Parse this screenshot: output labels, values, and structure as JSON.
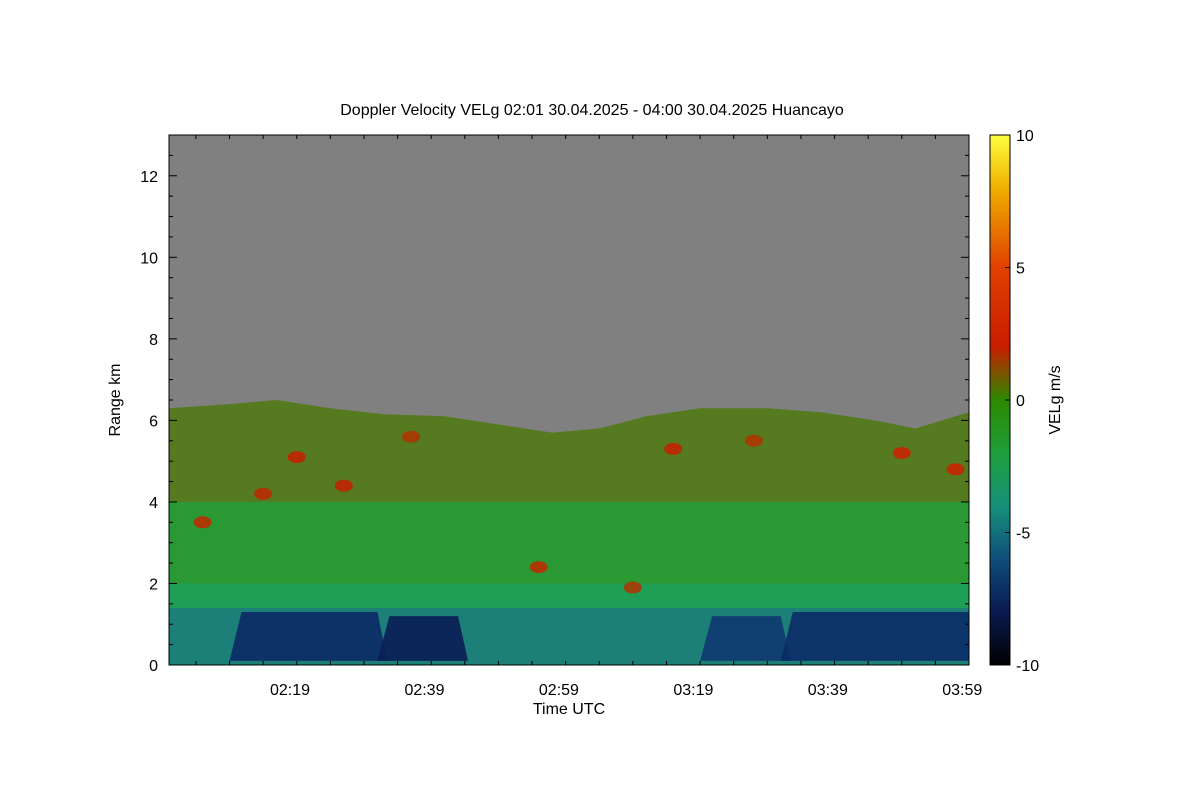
{
  "chart_data": {
    "type": "heatmap",
    "title": "Doppler Velocity VELg   02:01 30.04.2025 - 04:00 30.04.2025 Huancayo",
    "xlabel": "Time UTC",
    "ylabel": "Range km",
    "xlim_minutes_utc": [
      121,
      240
    ],
    "x_ticks": [
      {
        "minute": 139,
        "label": "02:19"
      },
      {
        "minute": 159,
        "label": "02:39"
      },
      {
        "minute": 179,
        "label": "02:59"
      },
      {
        "minute": 199,
        "label": "03:19"
      },
      {
        "minute": 219,
        "label": "03:39"
      },
      {
        "minute": 239,
        "label": "03:59"
      }
    ],
    "ylim": [
      0,
      13
    ],
    "y_ticks": [
      0,
      2,
      4,
      6,
      8,
      10,
      12
    ],
    "colorbar": {
      "label": "VELg m/s",
      "range": [
        -10,
        10
      ],
      "ticks": [
        {
          "value": 10,
          "label": "10"
        },
        {
          "value": 5,
          "label": "5"
        },
        {
          "value": 0,
          "label": "0"
        },
        {
          "value": -5,
          "label": "-5"
        },
        {
          "value": -10,
          "label": "-10"
        }
      ],
      "stops": [
        {
          "value": -10,
          "color": "#000000"
        },
        {
          "value": -8,
          "color": "#0a1a50"
        },
        {
          "value": -6,
          "color": "#0f4d7a"
        },
        {
          "value": -4,
          "color": "#17917a"
        },
        {
          "value": -2,
          "color": "#1e9e3a"
        },
        {
          "value": 0,
          "color": "#2c8a00"
        },
        {
          "value": 2,
          "color": "#c81e00"
        },
        {
          "value": 5,
          "color": "#e04000"
        },
        {
          "value": 8,
          "color": "#f0b000"
        },
        {
          "value": 10,
          "color": "#ffff40"
        }
      ]
    },
    "no_echo_color": "#808080",
    "echo_top_km": [
      {
        "minute": 121,
        "top": 6.3
      },
      {
        "minute": 130,
        "top": 6.4
      },
      {
        "minute": 137,
        "top": 6.5
      },
      {
        "minute": 145,
        "top": 6.3
      },
      {
        "minute": 153,
        "top": 6.15
      },
      {
        "minute": 162,
        "top": 6.1
      },
      {
        "minute": 170,
        "top": 5.9
      },
      {
        "minute": 178,
        "top": 5.7
      },
      {
        "minute": 185,
        "top": 5.8
      },
      {
        "minute": 192,
        "top": 6.1
      },
      {
        "minute": 200,
        "top": 6.3
      },
      {
        "minute": 210,
        "top": 6.3
      },
      {
        "minute": 218,
        "top": 6.2
      },
      {
        "minute": 226,
        "top": 6.0
      },
      {
        "minute": 232,
        "top": 5.8
      },
      {
        "minute": 236,
        "top": 6.0
      },
      {
        "minute": 240,
        "top": 6.2
      }
    ],
    "layers_velocity_ms": [
      {
        "range_km": [
          4.0,
          6.5
        ],
        "velocity": 0.5,
        "color": "#557a1f"
      },
      {
        "range_km": [
          2.0,
          4.0
        ],
        "velocity": -2,
        "color": "#2a9933"
      },
      {
        "range_km": [
          1.4,
          2.0
        ],
        "velocity": -3,
        "color": "#1f9e55"
      },
      {
        "range_km": [
          0.0,
          1.4
        ],
        "velocity": -5,
        "color": "#1c7f78"
      }
    ],
    "strong_downdraft_zones": [
      {
        "minute": [
          130,
          152
        ],
        "range_km": [
          0.1,
          1.3
        ],
        "velocity": -8,
        "color": "#0c2a66"
      },
      {
        "minute": [
          152,
          164
        ],
        "range_km": [
          0.1,
          1.2
        ],
        "velocity": -9,
        "color": "#0a1e55"
      },
      {
        "minute": [
          200,
          212
        ],
        "range_km": [
          0.1,
          1.2
        ],
        "velocity": -8,
        "color": "#0f3870"
      },
      {
        "minute": [
          212,
          240
        ],
        "range_km": [
          0.1,
          1.3
        ],
        "velocity": -8,
        "color": "#0c2c66"
      }
    ],
    "updraft_patches": [
      {
        "minute": 147,
        "range_km": 4.4,
        "velocity": 3,
        "color": "#c81e00"
      },
      {
        "minute": 140,
        "range_km": 5.1,
        "velocity": 3,
        "color": "#c81e00"
      },
      {
        "minute": 135,
        "range_km": 4.2,
        "velocity": 3,
        "color": "#c02800"
      },
      {
        "minute": 126,
        "range_km": 3.5,
        "velocity": 3,
        "color": "#c02800"
      },
      {
        "minute": 176,
        "range_km": 2.4,
        "velocity": 3,
        "color": "#c02800"
      },
      {
        "minute": 190,
        "range_km": 1.9,
        "velocity": 2,
        "color": "#b03200"
      },
      {
        "minute": 196,
        "range_km": 5.3,
        "velocity": 3,
        "color": "#c81e00"
      },
      {
        "minute": 230,
        "range_km": 5.2,
        "velocity": 3,
        "color": "#d02000"
      },
      {
        "minute": 238,
        "range_km": 4.8,
        "velocity": 3,
        "color": "#d02000"
      },
      {
        "minute": 157,
        "range_km": 5.6,
        "velocity": 2,
        "color": "#b03200"
      },
      {
        "minute": 208,
        "range_km": 5.5,
        "velocity": 2,
        "color": "#b03200"
      }
    ]
  }
}
